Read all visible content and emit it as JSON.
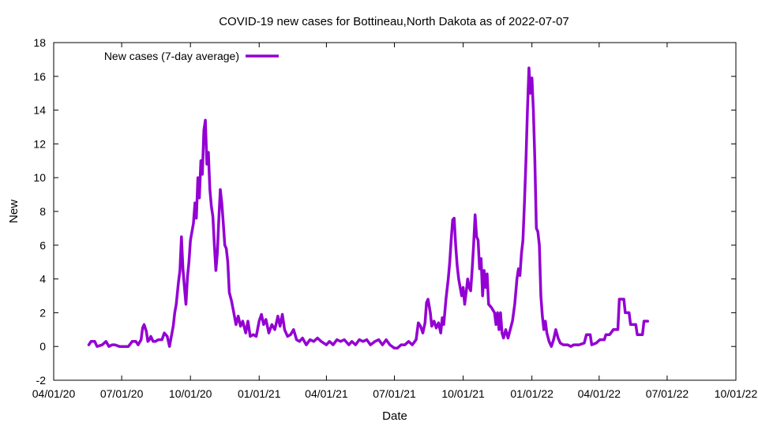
{
  "chart_data": {
    "type": "line",
    "title": "COVID-19 new cases for Bottineau,North Dakota as of 2022-07-07",
    "xlabel": "Date",
    "ylabel": "New",
    "xlim": [
      "2020-04-01",
      "2022-10-01"
    ],
    "ylim": [
      -2,
      18
    ],
    "x_ticks": [
      {
        "date": "2020-04-01",
        "label": "04/01/20"
      },
      {
        "date": "2020-07-01",
        "label": "07/01/20"
      },
      {
        "date": "2020-10-01",
        "label": "10/01/20"
      },
      {
        "date": "2021-01-01",
        "label": "01/01/21"
      },
      {
        "date": "2021-04-01",
        "label": "04/01/21"
      },
      {
        "date": "2021-07-01",
        "label": "07/01/21"
      },
      {
        "date": "2021-10-01",
        "label": "10/01/21"
      },
      {
        "date": "2022-01-01",
        "label": "01/01/22"
      },
      {
        "date": "2022-04-01",
        "label": "04/01/22"
      },
      {
        "date": "2022-07-01",
        "label": "07/01/22"
      },
      {
        "date": "2022-10-01",
        "label": "10/01/22"
      }
    ],
    "y_ticks": [
      -2,
      0,
      2,
      4,
      6,
      8,
      10,
      12,
      14,
      16,
      18
    ],
    "grid": false,
    "legend_position": "top-left",
    "series": [
      {
        "name": "New cases (7-day average)",
        "color": "#9400d3",
        "points": [
          [
            "2020-05-18",
            0.1
          ],
          [
            "2020-05-21",
            0.3
          ],
          [
            "2020-05-26",
            0.3
          ],
          [
            "2020-05-29",
            0.0
          ],
          [
            "2020-06-05",
            0.1
          ],
          [
            "2020-06-10",
            0.3
          ],
          [
            "2020-06-14",
            0.0
          ],
          [
            "2020-06-18",
            0.1
          ],
          [
            "2020-06-22",
            0.1
          ],
          [
            "2020-06-28",
            0.0
          ],
          [
            "2020-07-10",
            0.0
          ],
          [
            "2020-07-15",
            0.3
          ],
          [
            "2020-07-20",
            0.3
          ],
          [
            "2020-07-23",
            0.1
          ],
          [
            "2020-07-27",
            0.4
          ],
          [
            "2020-07-29",
            1.1
          ],
          [
            "2020-07-31",
            1.3
          ],
          [
            "2020-08-03",
            0.9
          ],
          [
            "2020-08-05",
            0.3
          ],
          [
            "2020-08-07",
            0.4
          ],
          [
            "2020-08-09",
            0.6
          ],
          [
            "2020-08-12",
            0.3
          ],
          [
            "2020-08-15",
            0.3
          ],
          [
            "2020-08-19",
            0.4
          ],
          [
            "2020-08-24",
            0.4
          ],
          [
            "2020-08-27",
            0.8
          ],
          [
            "2020-08-31",
            0.6
          ],
          [
            "2020-09-03",
            0.0
          ],
          [
            "2020-09-05",
            0.5
          ],
          [
            "2020-09-08",
            1.2
          ],
          [
            "2020-09-10",
            2.0
          ],
          [
            "2020-09-12",
            2.5
          ],
          [
            "2020-09-15",
            3.8
          ],
          [
            "2020-09-17",
            4.5
          ],
          [
            "2020-09-19",
            6.5
          ],
          [
            "2020-09-21",
            4.6
          ],
          [
            "2020-09-23",
            3.5
          ],
          [
            "2020-09-25",
            2.5
          ],
          [
            "2020-09-27",
            4.1
          ],
          [
            "2020-09-29",
            5.0
          ],
          [
            "2020-10-01",
            6.3
          ],
          [
            "2020-10-03",
            6.8
          ],
          [
            "2020-10-05",
            7.3
          ],
          [
            "2020-10-07",
            8.5
          ],
          [
            "2020-10-09",
            7.6
          ],
          [
            "2020-10-11",
            10.0
          ],
          [
            "2020-10-13",
            8.8
          ],
          [
            "2020-10-15",
            11.0
          ],
          [
            "2020-10-17",
            10.2
          ],
          [
            "2020-10-19",
            12.8
          ],
          [
            "2020-10-21",
            13.4
          ],
          [
            "2020-10-23",
            10.8
          ],
          [
            "2020-10-25",
            11.5
          ],
          [
            "2020-10-27",
            9.3
          ],
          [
            "2020-10-29",
            8.3
          ],
          [
            "2020-10-31",
            7.7
          ],
          [
            "2020-11-02",
            6.0
          ],
          [
            "2020-11-04",
            4.5
          ],
          [
            "2020-11-06",
            5.5
          ],
          [
            "2020-11-08",
            7.5
          ],
          [
            "2020-11-10",
            9.3
          ],
          [
            "2020-11-12",
            8.5
          ],
          [
            "2020-11-14",
            7.3
          ],
          [
            "2020-11-16",
            6.0
          ],
          [
            "2020-11-18",
            5.8
          ],
          [
            "2020-11-20",
            5.0
          ],
          [
            "2020-11-22",
            3.2
          ],
          [
            "2020-11-25",
            2.7
          ],
          [
            "2020-11-28",
            2.0
          ],
          [
            "2020-12-01",
            1.3
          ],
          [
            "2020-12-04",
            1.8
          ],
          [
            "2020-12-07",
            1.2
          ],
          [
            "2020-12-10",
            1.5
          ],
          [
            "2020-12-14",
            0.8
          ],
          [
            "2020-12-17",
            1.5
          ],
          [
            "2020-12-20",
            0.6
          ],
          [
            "2020-12-24",
            0.7
          ],
          [
            "2020-12-28",
            0.6
          ],
          [
            "2021-01-01",
            1.5
          ],
          [
            "2021-01-04",
            1.9
          ],
          [
            "2021-01-07",
            1.3
          ],
          [
            "2021-01-10",
            1.6
          ],
          [
            "2021-01-14",
            0.8
          ],
          [
            "2021-01-18",
            1.3
          ],
          [
            "2021-01-22",
            1.0
          ],
          [
            "2021-01-26",
            1.8
          ],
          [
            "2021-01-29",
            1.2
          ],
          [
            "2021-02-01",
            1.9
          ],
          [
            "2021-02-04",
            1.0
          ],
          [
            "2021-02-08",
            0.6
          ],
          [
            "2021-02-12",
            0.7
          ],
          [
            "2021-02-16",
            1.0
          ],
          [
            "2021-02-20",
            0.4
          ],
          [
            "2021-02-24",
            0.3
          ],
          [
            "2021-02-28",
            0.5
          ],
          [
            "2021-03-05",
            0.1
          ],
          [
            "2021-03-10",
            0.4
          ],
          [
            "2021-03-15",
            0.3
          ],
          [
            "2021-03-20",
            0.5
          ],
          [
            "2021-03-25",
            0.3
          ],
          [
            "2021-04-01",
            0.1
          ],
          [
            "2021-04-05",
            0.3
          ],
          [
            "2021-04-10",
            0.1
          ],
          [
            "2021-04-15",
            0.4
          ],
          [
            "2021-04-20",
            0.3
          ],
          [
            "2021-04-25",
            0.4
          ],
          [
            "2021-05-01",
            0.1
          ],
          [
            "2021-05-05",
            0.3
          ],
          [
            "2021-05-10",
            0.1
          ],
          [
            "2021-05-15",
            0.4
          ],
          [
            "2021-05-20",
            0.3
          ],
          [
            "2021-05-25",
            0.4
          ],
          [
            "2021-05-30",
            0.1
          ],
          [
            "2021-06-05",
            0.3
          ],
          [
            "2021-06-10",
            0.4
          ],
          [
            "2021-06-15",
            0.1
          ],
          [
            "2021-06-20",
            0.4
          ],
          [
            "2021-06-25",
            0.1
          ],
          [
            "2021-07-01",
            -0.1
          ],
          [
            "2021-07-05",
            -0.1
          ],
          [
            "2021-07-10",
            0.1
          ],
          [
            "2021-07-15",
            0.1
          ],
          [
            "2021-07-20",
            0.3
          ],
          [
            "2021-07-25",
            0.1
          ],
          [
            "2021-07-30",
            0.4
          ],
          [
            "2021-08-02",
            1.4
          ],
          [
            "2021-08-05",
            1.2
          ],
          [
            "2021-08-08",
            0.8
          ],
          [
            "2021-08-11",
            1.4
          ],
          [
            "2021-08-13",
            2.6
          ],
          [
            "2021-08-15",
            2.8
          ],
          [
            "2021-08-18",
            2.0
          ],
          [
            "2021-08-20",
            1.2
          ],
          [
            "2021-08-23",
            1.5
          ],
          [
            "2021-08-26",
            1.1
          ],
          [
            "2021-08-29",
            1.4
          ],
          [
            "2021-09-01",
            0.8
          ],
          [
            "2021-09-03",
            1.7
          ],
          [
            "2021-09-05",
            1.3
          ],
          [
            "2021-09-08",
            2.8
          ],
          [
            "2021-09-11",
            4.0
          ],
          [
            "2021-09-13",
            5.0
          ],
          [
            "2021-09-15",
            6.3
          ],
          [
            "2021-09-17",
            7.5
          ],
          [
            "2021-09-19",
            7.6
          ],
          [
            "2021-09-21",
            6.0
          ],
          [
            "2021-09-23",
            4.8
          ],
          [
            "2021-09-25",
            4.0
          ],
          [
            "2021-09-27",
            3.5
          ],
          [
            "2021-09-29",
            3.0
          ],
          [
            "2021-10-01",
            3.5
          ],
          [
            "2021-10-03",
            2.5
          ],
          [
            "2021-10-05",
            3.2
          ],
          [
            "2021-10-07",
            4.0
          ],
          [
            "2021-10-09",
            3.5
          ],
          [
            "2021-10-11",
            3.3
          ],
          [
            "2021-10-13",
            4.5
          ],
          [
            "2021-10-15",
            6.0
          ],
          [
            "2021-10-17",
            7.8
          ],
          [
            "2021-10-19",
            6.5
          ],
          [
            "2021-10-21",
            6.3
          ],
          [
            "2021-10-23",
            4.6
          ],
          [
            "2021-10-25",
            5.2
          ],
          [
            "2021-10-27",
            3.0
          ],
          [
            "2021-10-29",
            4.5
          ],
          [
            "2021-10-31",
            3.5
          ],
          [
            "2021-11-02",
            4.3
          ],
          [
            "2021-11-04",
            2.5
          ],
          [
            "2021-11-08",
            2.3
          ],
          [
            "2021-11-12",
            2.0
          ],
          [
            "2021-11-14",
            1.3
          ],
          [
            "2021-11-16",
            2.0
          ],
          [
            "2021-11-18",
            1.0
          ],
          [
            "2021-11-20",
            2.0
          ],
          [
            "2021-11-22",
            0.8
          ],
          [
            "2021-11-24",
            0.5
          ],
          [
            "2021-11-27",
            1.0
          ],
          [
            "2021-11-30",
            0.5
          ],
          [
            "2021-12-03",
            1.0
          ],
          [
            "2021-12-06",
            1.5
          ],
          [
            "2021-12-09",
            2.5
          ],
          [
            "2021-12-12",
            4.0
          ],
          [
            "2021-12-14",
            4.6
          ],
          [
            "2021-12-16",
            4.2
          ],
          [
            "2021-12-18",
            5.5
          ],
          [
            "2021-12-20",
            6.3
          ],
          [
            "2021-12-22",
            8.5
          ],
          [
            "2021-12-24",
            11.0
          ],
          [
            "2021-12-26",
            14.0
          ],
          [
            "2021-12-28",
            16.5
          ],
          [
            "2021-12-30",
            15.0
          ],
          [
            "2022-01-01",
            15.9
          ],
          [
            "2022-01-03",
            14.0
          ],
          [
            "2022-01-05",
            11.0
          ],
          [
            "2022-01-07",
            7.0
          ],
          [
            "2022-01-09",
            6.8
          ],
          [
            "2022-01-11",
            6.0
          ],
          [
            "2022-01-13",
            3.0
          ],
          [
            "2022-01-15",
            1.8
          ],
          [
            "2022-01-17",
            1.0
          ],
          [
            "2022-01-19",
            1.5
          ],
          [
            "2022-01-21",
            0.8
          ],
          [
            "2022-01-24",
            0.3
          ],
          [
            "2022-01-27",
            0.0
          ],
          [
            "2022-01-30",
            0.4
          ],
          [
            "2022-02-02",
            1.0
          ],
          [
            "2022-02-05",
            0.5
          ],
          [
            "2022-02-08",
            0.2
          ],
          [
            "2022-02-12",
            0.1
          ],
          [
            "2022-02-18",
            0.1
          ],
          [
            "2022-02-22",
            0.0
          ],
          [
            "2022-02-26",
            0.1
          ],
          [
            "2022-03-05",
            0.1
          ],
          [
            "2022-03-12",
            0.2
          ],
          [
            "2022-03-15",
            0.7
          ],
          [
            "2022-03-20",
            0.7
          ],
          [
            "2022-03-22",
            0.1
          ],
          [
            "2022-03-28",
            0.2
          ],
          [
            "2022-04-02",
            0.4
          ],
          [
            "2022-04-08",
            0.4
          ],
          [
            "2022-04-10",
            0.7
          ],
          [
            "2022-04-15",
            0.7
          ],
          [
            "2022-04-20",
            1.0
          ],
          [
            "2022-04-26",
            1.0
          ],
          [
            "2022-04-28",
            2.8
          ],
          [
            "2022-05-04",
            2.8
          ],
          [
            "2022-05-06",
            2.0
          ],
          [
            "2022-05-11",
            2.0
          ],
          [
            "2022-05-13",
            1.3
          ],
          [
            "2022-05-20",
            1.3
          ],
          [
            "2022-05-22",
            0.7
          ],
          [
            "2022-05-29",
            0.7
          ],
          [
            "2022-05-31",
            1.5
          ],
          [
            "2022-06-05",
            1.5
          ]
        ]
      }
    ]
  }
}
